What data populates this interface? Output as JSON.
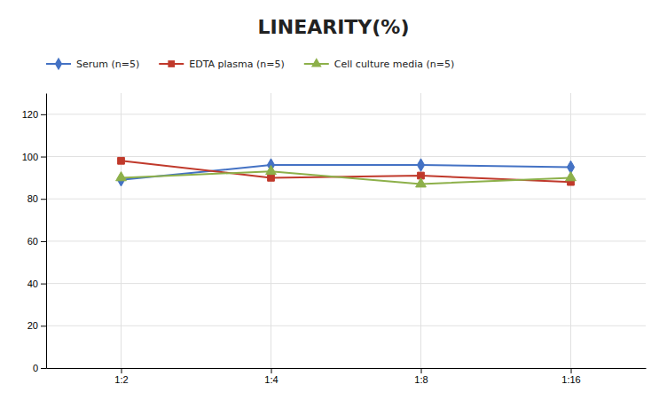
{
  "chart_data": {
    "type": "line",
    "title": "LINEARITY(%)",
    "categories": [
      "1:2",
      "1:4",
      "1:8",
      "1:16"
    ],
    "series": [
      {
        "name": "Serum (n=5)",
        "color": "#4472C4",
        "marker": "diamond",
        "values": [
          89,
          96,
          96,
          95
        ]
      },
      {
        "name": "EDTA plasma (n=5)",
        "color": "#C0392B",
        "marker": "square",
        "values": [
          98,
          90,
          91,
          88
        ]
      },
      {
        "name": "Cell culture media (n=5)",
        "color": "#8DB04A",
        "marker": "triangle",
        "values": [
          90,
          93,
          87,
          90
        ]
      }
    ],
    "ylim": [
      0,
      130
    ],
    "yticks": [
      0,
      20,
      40,
      60,
      80,
      100,
      120
    ],
    "grid": true,
    "legend": "top"
  }
}
